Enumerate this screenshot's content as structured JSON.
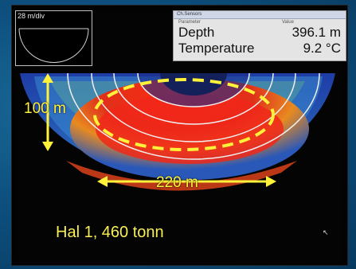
{
  "mini_view": {
    "scale_label": "28 m/div"
  },
  "info_panel": {
    "title": "Ch.Sensors",
    "col_parameter": "Parameter",
    "col_value": "Value",
    "rows": [
      {
        "parameter": "Depth",
        "value": "396.1 m"
      },
      {
        "parameter": "Temperature",
        "value": "9.2 °C"
      }
    ]
  },
  "annotations": {
    "height_label": "100 m",
    "width_label": "220 m",
    "caption": "Hal 1, 460 tonn"
  },
  "colors": {
    "annotation": "#fff23a",
    "sonar_hot": "#e8251a",
    "sonar_cold": "#1b3fa8"
  }
}
